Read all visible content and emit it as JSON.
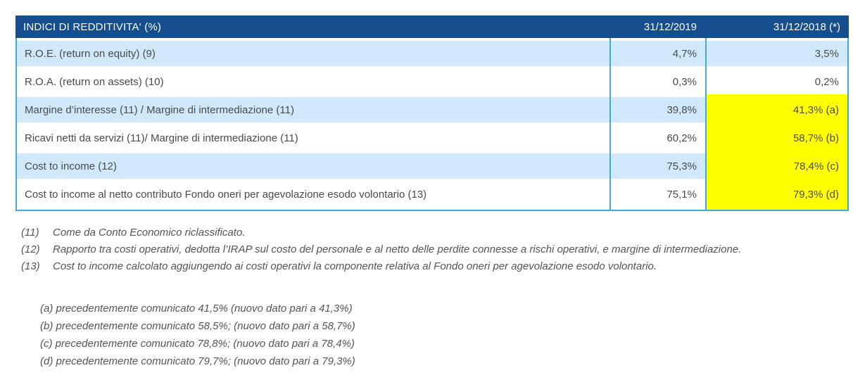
{
  "table": {
    "header": {
      "title": "INDICI DI REDDITIVITA' (%)",
      "col2019": "31/12/2019",
      "col2018": "31/12/2018 (*)"
    },
    "rows": [
      {
        "label": "R.O.E. (return on equity) (9)",
        "v2019": "4,7%",
        "v2018": "3,5%",
        "highlight": false
      },
      {
        "label": "R.O.A. (return on assets) (10)",
        "v2019": "0,3%",
        "v2018": "0,2%",
        "highlight": false
      },
      {
        "label": "Margine d’interesse (11) / Margine di intermediazione (11)",
        "v2019": "39,8%",
        "v2018": "41,3% (a)",
        "highlight": true
      },
      {
        "label": "Ricavi netti da servizi (11)/ Margine di intermediazione (11)",
        "v2019": "60,2%",
        "v2018": "58,7% (b)",
        "highlight": true
      },
      {
        "label": "Cost to income (12)",
        "v2019": "75,3%",
        "v2018": "78,4% (c)",
        "highlight": true
      },
      {
        "label": "Cost to income al netto contributo Fondo oneri per agevolazione esodo volontario (13)",
        "v2019": "75,1%",
        "v2018": "79,3% (d)",
        "highlight": true
      }
    ]
  },
  "footnotes": [
    {
      "num": "(11)",
      "text": "Come da Conto Economico riclassificato."
    },
    {
      "num": "(12)",
      "text": "Rapporto tra costi operativi, dedotta l’IRAP sul costo del personale e al netto delle perdite connesse a rischi operativi, e margine di intermediazione."
    },
    {
      "num": "(13)",
      "text": "Cost to income calcolato aggiungendo ai costi operativi la componente relativa al Fondo oneri per agevolazione esodo volontario."
    }
  ],
  "letter_notes": [
    "(a) precedentemente comunicato 41,5% (nuovo dato pari a 41,3%)",
    "(b) precedentemente comunicato 58,5%; (nuovo dato pari a 58,7%)",
    "(c) precedentemente comunicato 78,8%; (nuovo dato pari a 78,4%)",
    "(d) precedentemente comunicato 79,7%; (nuovo dato pari a 79,3%)"
  ],
  "colors": {
    "header_bg": "#164e8d",
    "row_alt_bg": "#cfe9fa",
    "border": "#45a8d5",
    "highlight": "#ffff00",
    "text": "#4a4a4a",
    "note_text": "#555555"
  }
}
